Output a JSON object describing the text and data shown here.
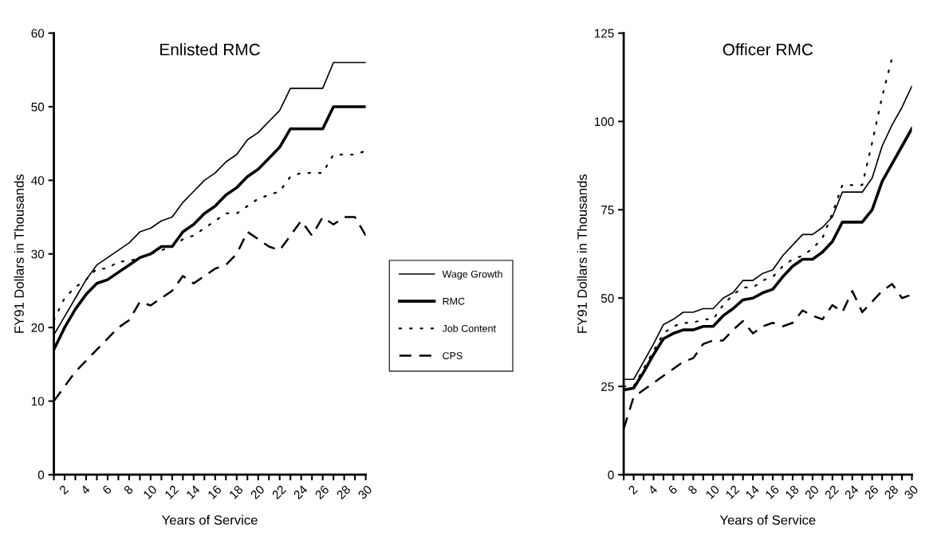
{
  "chart_data": [
    {
      "type": "line",
      "title": "Enlisted RMC",
      "xlabel": "Years of Service",
      "ylabel": "FY91 Dollars in Thousands",
      "x": [
        1,
        2,
        3,
        4,
        5,
        6,
        7,
        8,
        9,
        10,
        11,
        12,
        13,
        14,
        15,
        16,
        17,
        18,
        19,
        20,
        21,
        22,
        23,
        24,
        25,
        26,
        27,
        28,
        29,
        30
      ],
      "xlim": [
        1,
        30
      ],
      "ylim": [
        0,
        60
      ],
      "yticks": [
        0,
        10,
        20,
        30,
        40,
        50,
        60
      ],
      "xticks": [
        {
          "value": 1,
          "label": null
        },
        2,
        {
          "value": 3,
          "label": null
        },
        4,
        {
          "value": 5,
          "label": null
        },
        6,
        {
          "value": 7,
          "label": null
        },
        8,
        {
          "value": 9,
          "label": null
        },
        10,
        {
          "value": 11,
          "label": null
        },
        12,
        {
          "value": 13,
          "label": null
        },
        14,
        {
          "value": 15,
          "label": null
        },
        16,
        {
          "value": 17,
          "label": null
        },
        18,
        {
          "value": 19,
          "label": null
        },
        20,
        {
          "value": 21,
          "label": null
        },
        22,
        {
          "value": 23,
          "label": null
        },
        24,
        {
          "value": 25,
          "label": null
        },
        26,
        {
          "value": 27,
          "label": null
        },
        28,
        {
          "value": 29,
          "label": null
        },
        30
      ],
      "grid": false,
      "legend": "right",
      "series": [
        {
          "name": "Wage Growth",
          "color": "#000000",
          "line_style": "solid",
          "values": [
            19,
            21.5,
            24,
            26.5,
            28.5,
            29.5,
            30.5,
            31.5,
            33,
            33.5,
            34.5,
            35,
            37,
            38.5,
            40,
            41,
            42.5,
            43.5,
            45.5,
            46.5,
            48,
            49.5,
            52.5,
            52.5,
            52.5,
            52.5,
            56,
            56,
            56,
            56
          ]
        },
        {
          "name": "RMC",
          "color": "#000000",
          "line_style": "solid",
          "values": [
            17,
            20,
            22.5,
            24.5,
            26,
            26.5,
            27.5,
            28.5,
            29.5,
            30,
            31,
            31,
            33,
            34,
            35.5,
            36.5,
            38,
            39,
            40.5,
            41.5,
            43,
            44.5,
            47,
            47,
            47,
            47,
            50,
            50,
            50,
            50
          ]
        },
        {
          "name": "Job Content",
          "color": "#000000",
          "line_style": "dotted",
          "values": [
            21,
            24,
            25.5,
            26.5,
            28,
            28,
            29,
            29,
            29.5,
            30,
            30.5,
            31,
            32,
            32.5,
            33.5,
            34.5,
            35.5,
            35.5,
            36.5,
            37.5,
            38,
            38.5,
            40.5,
            41,
            41,
            41,
            43.5,
            43.5,
            43.5,
            44
          ]
        },
        {
          "name": "CPS",
          "color": "#000000",
          "line_style": "dashed",
          "values": [
            10,
            12,
            14,
            15.5,
            17,
            18.5,
            20,
            21,
            23.5,
            23,
            24,
            25,
            27,
            26,
            27,
            28,
            28.5,
            30,
            33,
            32,
            31,
            30.5,
            32.5,
            34.5,
            32.5,
            35,
            34,
            35,
            35,
            32.5
          ]
        }
      ]
    },
    {
      "type": "line",
      "title": "Officer RMC",
      "xlabel": "Years of Service",
      "ylabel": "FY91 Dollars in Thousands",
      "x": [
        1,
        2,
        3,
        4,
        5,
        6,
        7,
        8,
        9,
        10,
        11,
        12,
        13,
        14,
        15,
        16,
        17,
        18,
        19,
        20,
        21,
        22,
        23,
        24,
        25,
        26,
        27,
        28,
        29,
        30
      ],
      "xlim": [
        1,
        30
      ],
      "ylim": [
        0,
        125
      ],
      "yticks": [
        0,
        25,
        50,
        75,
        100,
        125
      ],
      "xticks": [
        {
          "value": 1,
          "label": null
        },
        2,
        {
          "value": 3,
          "label": null
        },
        4,
        {
          "value": 5,
          "label": null
        },
        6,
        {
          "value": 7,
          "label": null
        },
        8,
        {
          "value": 9,
          "label": null
        },
        10,
        {
          "value": 11,
          "label": null
        },
        12,
        {
          "value": 13,
          "label": null
        },
        14,
        {
          "value": 15,
          "label": null
        },
        16,
        {
          "value": 17,
          "label": null
        },
        18,
        {
          "value": 19,
          "label": null
        },
        20,
        {
          "value": 21,
          "label": null
        },
        22,
        {
          "value": 23,
          "label": null
        },
        24,
        {
          "value": 25,
          "label": null
        },
        26,
        {
          "value": 27,
          "label": null
        },
        28,
        {
          "value": 29,
          "label": null
        },
        30
      ],
      "grid": false,
      "series": [
        {
          "color": "#000000",
          "line_style": "solid",
          "values": [
            27,
            27,
            32,
            37,
            42.5,
            44,
            46,
            46,
            47,
            47,
            50,
            51.5,
            55,
            55,
            57,
            58,
            62,
            65,
            68,
            68,
            70,
            73,
            80,
            80,
            80,
            84,
            93,
            99,
            104,
            110
          ]
        },
        {
          "color": "#000000",
          "line_style": "solid",
          "values": [
            24,
            24.5,
            29,
            34,
            38.5,
            40,
            41,
            41,
            42,
            42,
            45,
            47,
            49.5,
            50,
            51.5,
            52.5,
            56,
            59,
            61,
            61,
            63,
            66,
            71.5,
            71.5,
            71.5,
            75,
            83,
            88,
            93,
            98
          ]
        },
        {
          "color": "#000000",
          "line_style": "dotted",
          "values": [
            25,
            25,
            30,
            35,
            40,
            42,
            43,
            43,
            44,
            44,
            48,
            51,
            53,
            53,
            55,
            56,
            59,
            61,
            62,
            64,
            67,
            74,
            82,
            82,
            82,
            94,
            107,
            118,
            null,
            null
          ]
        },
        {
          "color": "#000000",
          "line_style": "dashed",
          "values": [
            13,
            22,
            24,
            26,
            28,
            30,
            32,
            33,
            37,
            38,
            38,
            41,
            43.5,
            40,
            42,
            43,
            42,
            43,
            46.5,
            45,
            44,
            48,
            46,
            52,
            46,
            49,
            52,
            54,
            50,
            51
          ]
        }
      ]
    }
  ]
}
